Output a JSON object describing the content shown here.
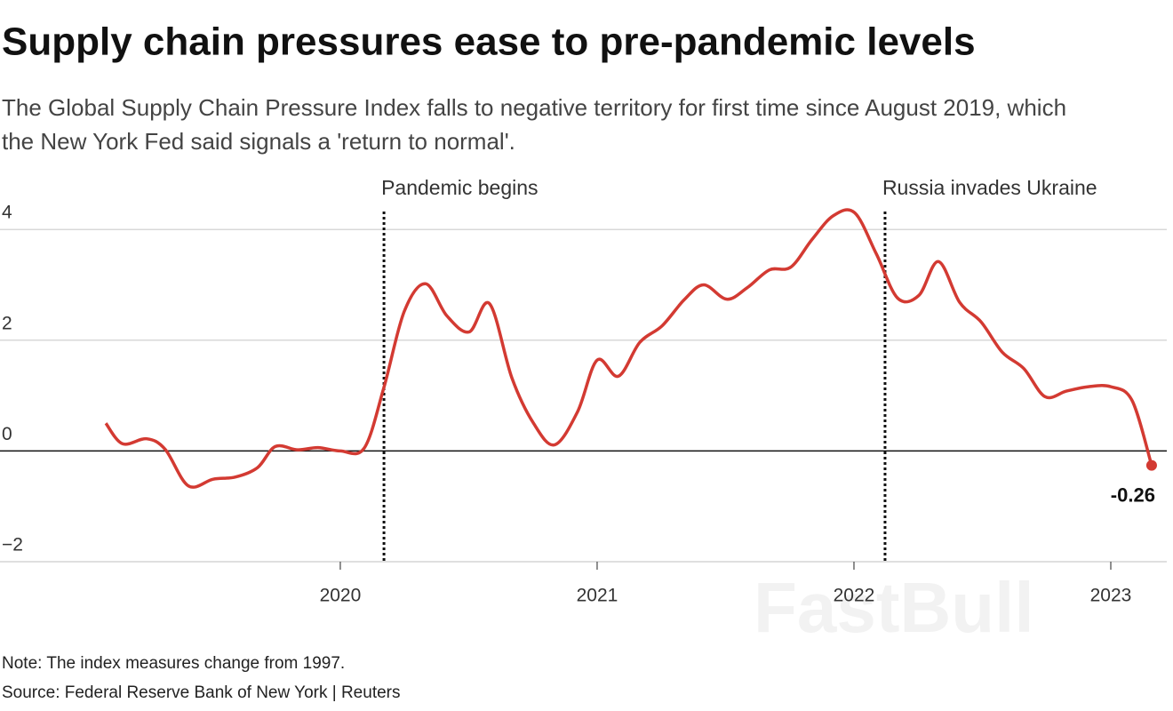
{
  "chart_data": {
    "type": "line",
    "title": "Supply chain pressures ease to pre-pandemic levels",
    "subtitle_lines": [
      "The Global Supply Chain Pressure Index falls to negative territory for first time since August 2019, which",
      "the New York Fed said signals a 'return to normal'."
    ],
    "notes": [
      "Note: The index measures change from 1997.",
      "Source: Federal Reserve Bank of New York | Reuters"
    ],
    "watermark": "FastBull",
    "color": "#d33a32",
    "x": [
      2019.087,
      2019.152,
      2019.246,
      2019.318,
      2019.408,
      2019.505,
      2019.592,
      2019.678,
      2019.747,
      2019.834,
      2019.913,
      2020.0,
      2020.093,
      2020.17,
      2020.249,
      2020.332,
      2020.415,
      2020.502,
      2020.581,
      2020.668,
      2020.751,
      2020.834,
      2020.924,
      2021.0,
      2021.083,
      2021.166,
      2021.253,
      2021.339,
      2021.415,
      2021.505,
      2021.585,
      2021.671,
      2021.754,
      2021.837,
      2021.92,
      2022.003,
      2022.087,
      2022.17,
      2022.253,
      2022.329,
      2022.412,
      2022.495,
      2022.578,
      2022.661,
      2022.744,
      2022.827,
      2022.913,
      2023.0,
      2023.083,
      2023.159
    ],
    "values": [
      0.5,
      0.13,
      0.22,
      0.03,
      -0.63,
      -0.51,
      -0.47,
      -0.3,
      0.08,
      0.02,
      0.06,
      0.0,
      0.05,
      1.15,
      2.52,
      3.02,
      2.44,
      2.15,
      2.66,
      1.32,
      0.51,
      0.11,
      0.71,
      1.64,
      1.35,
      1.96,
      2.26,
      2.73,
      3.0,
      2.74,
      2.95,
      3.27,
      3.32,
      3.82,
      4.25,
      4.3,
      3.56,
      2.76,
      2.81,
      3.42,
      2.68,
      2.33,
      1.78,
      1.49,
      0.98,
      1.08,
      1.16,
      1.16,
      0.91,
      -0.26
    ],
    "xlim": [
      2018.675,
      2023.218
    ],
    "xticks": [
      2020,
      2021,
      2022,
      2023
    ],
    "ylim": [
      -2,
      4.6
    ],
    "yticks": [
      {
        "value": -2,
        "label": "−2"
      },
      0,
      2,
      4
    ],
    "grid": true,
    "annotations": [
      {
        "x": 2020.17,
        "text": "Pandemic begins"
      },
      {
        "x": 2022.121,
        "text": "Russia invades Ukraine"
      }
    ]
  }
}
